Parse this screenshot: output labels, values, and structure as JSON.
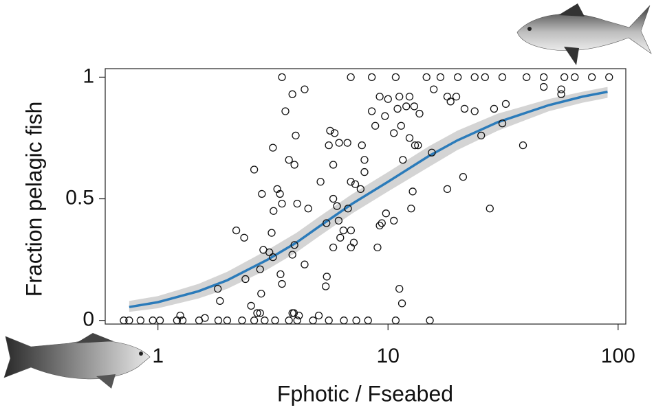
{
  "chart_data": {
    "type": "scatter",
    "x_label": "Fphotic / Fseabed",
    "y_label": "Fraction pelagic fish",
    "xscale": "log",
    "xlim": [
      0.59,
      108
    ],
    "ylim": [
      -0.015,
      1.035
    ],
    "xticks": [
      1,
      10,
      100
    ],
    "yticks": [
      0,
      0.5,
      1
    ],
    "series": [
      {
        "type": "scatter",
        "color": "#111111",
        "x": [
          0.71,
          0.75,
          0.84,
          0.95,
          1.02,
          1.21,
          1.28,
          1.51,
          1.83,
          2.0,
          2.32,
          2.62,
          2.91,
          3.23,
          3.71,
          4.03,
          4.72,
          5.53,
          6.43,
          7.28,
          8.19,
          10.8,
          15.2,
          1.25,
          1.6,
          2.7,
          3.9,
          4.1,
          5.0,
          3.46,
          6.89,
          8.5,
          10.8,
          14.7,
          16.9,
          20.1,
          23.8,
          26.4,
          31.4,
          40,
          47.5,
          58.4,
          64.8,
          76.9,
          91.4,
          3.84,
          4.34,
          3.58,
          3.97,
          3.16,
          2.62,
          3.71,
          3.92,
          3.3,
          3.39,
          2.83,
          3.46,
          3.18,
          4.03,
          4.5,
          5.09,
          2.19,
          2.37,
          3.12,
          2.87,
          3.05,
          3.16,
          3.92,
          3.84,
          2.78,
          4.34,
          3.41,
          2.4,
          1.82,
          2.81,
          1.86,
          3.46,
          2.54,
          2.78,
          3.84,
          5.42,
          5.36,
          5.6,
          5.86,
          5.53,
          6.66,
          6.13,
          5.78,
          7.7,
          7.9,
          6.89,
          7.2,
          7.6,
          7.9,
          5.78,
          6.0,
          5.4,
          6.7,
          6.2,
          6.1,
          6.4,
          6.9,
          7.1,
          5.78,
          6.9,
          9.2,
          9.4,
          9.0,
          9.8,
          10.6,
          11.0,
          12.0,
          9.7,
          8.5,
          8.8,
          9.2,
          10.0,
          10.6,
          11.4,
          12.4,
          13.1,
          13.5,
          12.8,
          11.6,
          12.6,
          15.5,
          15.8,
          18.1,
          18.7,
          19.8,
          21.5,
          23.8,
          25.4,
          28.9,
          31.4,
          32.5,
          38.6,
          27.7,
          18.1,
          21.2,
          11.2,
          11.5,
          56.6,
          56.6,
          47.5,
          11.2,
          12.4,
          13.0,
          13.7
        ],
        "values": [
          0,
          0,
          0,
          0,
          0,
          0,
          0,
          0,
          0,
          0,
          0,
          0,
          0,
          0,
          0,
          0,
          0,
          0,
          0,
          0,
          0,
          0,
          0,
          0.02,
          0.01,
          0.03,
          0.03,
          0.02,
          0.02,
          1,
          1,
          1,
          1,
          1,
          1,
          1,
          1,
          1,
          1,
          1,
          1,
          1,
          1,
          1,
          1,
          0.93,
          0.95,
          0.86,
          0.76,
          0.71,
          0.62,
          0.66,
          0.64,
          0.54,
          0.52,
          0.52,
          0.48,
          0.45,
          0.48,
          0.46,
          0.57,
          0.37,
          0.34,
          0.36,
          0.29,
          0.28,
          0.26,
          0.31,
          0.27,
          0.21,
          0.23,
          0.19,
          0.17,
          0.13,
          0.11,
          0.08,
          0.15,
          0.06,
          0.03,
          0.03,
          0.18,
          0.14,
          0.78,
          0.77,
          0.72,
          0.73,
          0.73,
          0.64,
          0.72,
          0.66,
          0.57,
          0.56,
          0.54,
          0.61,
          0.5,
          0.47,
          0.4,
          0.46,
          0.34,
          0.41,
          0.37,
          0.37,
          0.32,
          0.3,
          0.3,
          0.39,
          0.4,
          0.3,
          0.44,
          0.41,
          0.87,
          0.88,
          0.84,
          0.86,
          0.8,
          0.92,
          0.91,
          0.77,
          0.8,
          0.75,
          0.72,
          0.72,
          0.53,
          0.66,
          0.46,
          0.69,
          0.95,
          0.92,
          0.9,
          0.92,
          0.87,
          0.86,
          0.76,
          0.87,
          0.81,
          0.89,
          0.72,
          0.46,
          0.54,
          0.59,
          0.13,
          0.07,
          0.95,
          0.93,
          0.96,
          0.92,
          0.92,
          0.88,
          0.85
        ]
      },
      {
        "type": "line",
        "color": "#2b7bba",
        "band_color": "#d4d4d4",
        "x": [
          0.75,
          1,
          1.5,
          2,
          3,
          4,
          5,
          7,
          10,
          15,
          20,
          30,
          50,
          70,
          90
        ],
        "values": [
          0.055,
          0.075,
          0.12,
          0.165,
          0.25,
          0.32,
          0.385,
          0.48,
          0.57,
          0.675,
          0.74,
          0.815,
          0.885,
          0.92,
          0.94
        ],
        "lower": [
          0.035,
          0.05,
          0.09,
          0.13,
          0.21,
          0.28,
          0.345,
          0.44,
          0.53,
          0.63,
          0.7,
          0.78,
          0.86,
          0.895,
          0.915
        ],
        "upper": [
          0.08,
          0.1,
          0.15,
          0.2,
          0.29,
          0.36,
          0.425,
          0.52,
          0.61,
          0.715,
          0.78,
          0.85,
          0.91,
          0.94,
          0.96
        ]
      }
    ]
  }
}
